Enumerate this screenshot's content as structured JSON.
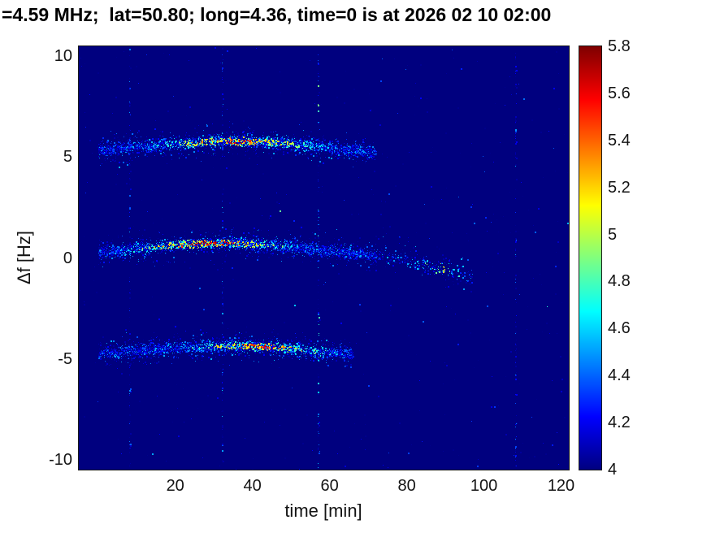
{
  "chart_data": {
    "type": "heatmap",
    "title": "=4.59 MHz;  lat=50.80; long=4.36, time=0 is at 2026 02 10 02:00",
    "xlabel": "time [min]",
    "ylabel": "Δf [Hz]",
    "xlim": [
      -5,
      122
    ],
    "ylim": [
      -10.5,
      10.5
    ],
    "xticks": [
      20,
      40,
      60,
      80,
      100,
      120
    ],
    "yticks": [
      {
        "value": -10,
        "label": "-10"
      },
      {
        "value": -5,
        "label": "-5"
      },
      {
        "value": 0,
        "label": "0"
      },
      {
        "value": 5,
        "label": "5"
      },
      {
        "value": 10,
        "label": "10"
      }
    ],
    "colorbar": {
      "range": [
        4,
        5.8
      ],
      "colormap": "jet",
      "ticks": [
        {
          "value": 4,
          "label": "4"
        },
        {
          "value": 4.2,
          "label": "4.2"
        },
        {
          "value": 4.4,
          "label": "4.4"
        },
        {
          "value": 4.6,
          "label": "4.6"
        },
        {
          "value": 4.8,
          "label": "4.8"
        },
        {
          "value": 5,
          "label": "5"
        },
        {
          "value": 5.2,
          "label": "5.2"
        },
        {
          "value": 5.4,
          "label": "5.4"
        },
        {
          "value": 5.6,
          "label": "5.6"
        },
        {
          "value": 5.8,
          "label": "5.8"
        }
      ]
    },
    "background_value": 4,
    "traces": [
      {
        "name": "upper-doppler-trace",
        "center": [
          [
            0,
            5.35
          ],
          [
            8,
            5.5
          ],
          [
            16,
            5.63
          ],
          [
            24,
            5.74
          ],
          [
            32,
            5.82
          ],
          [
            40,
            5.82
          ],
          [
            48,
            5.72
          ],
          [
            56,
            5.55
          ],
          [
            64,
            5.38
          ],
          [
            72,
            5.25
          ]
        ],
        "segments": [
          {
            "t0": 0,
            "t1": 72,
            "density": 48,
            "spread": 0.13,
            "hot_center": 36,
            "hot_halfwidth": 26,
            "hot_gain": 1.45
          }
        ]
      },
      {
        "name": "center-doppler-trace",
        "center": [
          [
            0,
            0.3
          ],
          [
            8,
            0.45
          ],
          [
            16,
            0.6
          ],
          [
            24,
            0.72
          ],
          [
            32,
            0.78
          ],
          [
            40,
            0.72
          ],
          [
            48,
            0.6
          ],
          [
            56,
            0.45
          ],
          [
            64,
            0.3
          ],
          [
            72,
            0.15
          ],
          [
            80,
            -0.12
          ],
          [
            88,
            -0.48
          ],
          [
            97,
            -0.88
          ]
        ],
        "segments": [
          {
            "t0": 0,
            "t1": 72,
            "density": 48,
            "spread": 0.13,
            "hot_center": 28,
            "hot_halfwidth": 26,
            "hot_gain": 1.55
          },
          {
            "t0": 72,
            "t1": 97,
            "density": 14,
            "spread": 0.18,
            "hot_center": 89,
            "hot_halfwidth": 7,
            "hot_gain": 1.0
          }
        ]
      },
      {
        "name": "lower-doppler-trace",
        "center": [
          [
            0,
            -4.75
          ],
          [
            8,
            -4.62
          ],
          [
            16,
            -4.5
          ],
          [
            24,
            -4.42
          ],
          [
            32,
            -4.36
          ],
          [
            40,
            -4.34
          ],
          [
            48,
            -4.44
          ],
          [
            56,
            -4.6
          ],
          [
            66,
            -4.75
          ]
        ],
        "segments": [
          {
            "t0": 0,
            "t1": 66,
            "density": 48,
            "spread": 0.13,
            "hot_center": 42,
            "hot_halfwidth": 22,
            "hot_gain": 1.4
          }
        ]
      }
    ],
    "interference_lines": [
      {
        "time": 8,
        "strength": 0.5
      },
      {
        "time": 32,
        "strength": 0.6
      },
      {
        "time": 57,
        "strength": 0.9
      },
      {
        "time": 108,
        "strength": 0.5
      }
    ],
    "noise": {
      "count": 450,
      "max_extra": 0.4
    }
  }
}
